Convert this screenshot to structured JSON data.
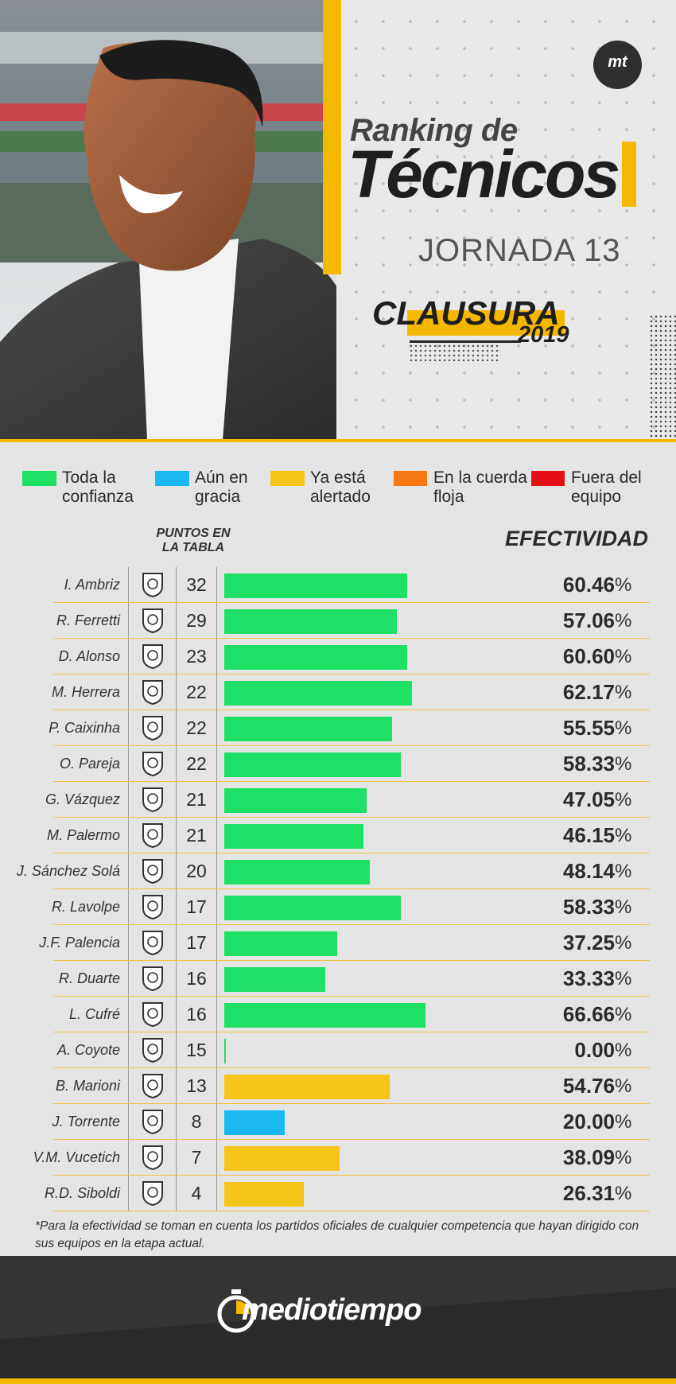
{
  "header": {
    "title_line1": "Ranking de",
    "title_line2": "Técnicos",
    "subtitle": "JORNADA 13",
    "tournament": "CLAUSURA",
    "year": "2019",
    "badge": "mt"
  },
  "legend": [
    {
      "label": "Toda la confianza",
      "color": "#1ee066"
    },
    {
      "label": "Aún en gracia",
      "color": "#1ab8ee"
    },
    {
      "label": "Ya está alertado",
      "color": "#f5c518"
    },
    {
      "label": "En la cuerda floja",
      "color": "#f77712"
    },
    {
      "label": "Fuera del equipo",
      "color": "#e30f15"
    }
  ],
  "columns": {
    "points": "PUNTOS EN LA TABLA",
    "effectiveness": "EFECTIVIDAD"
  },
  "chart_data": {
    "type": "bar",
    "categories": [
      "I. Ambriz",
      "R. Ferretti",
      "D. Alonso",
      "M. Herrera",
      "P. Caixinha",
      "O. Pareja",
      "G. Vázquez",
      "M. Palermo",
      "J. Sánchez Solá",
      "R. Lavolpe",
      "J.F. Palencia",
      "R. Duarte",
      "L. Cufré",
      "A. Coyote",
      "B. Marioni",
      "J. Torrente",
      "V.M. Vucetich",
      "R.D. Siboldi"
    ],
    "points": [
      32,
      29,
      23,
      22,
      22,
      22,
      21,
      21,
      20,
      17,
      17,
      16,
      16,
      15,
      13,
      8,
      7,
      4
    ],
    "values": [
      60.46,
      57.06,
      60.6,
      62.17,
      55.55,
      58.33,
      47.05,
      46.15,
      48.14,
      58.33,
      37.25,
      33.33,
      66.66,
      0.0,
      54.76,
      20.0,
      38.09,
      26.31
    ],
    "labels": [
      "60.46",
      "57.06",
      "60.60",
      "62.17",
      "55.55",
      "58.33",
      "47.05",
      "46.15",
      "48.14",
      "58.33",
      "37.25",
      "33.33",
      "66.66",
      "0.00",
      "54.76",
      "20.00",
      "38.09",
      "26.31"
    ],
    "status": [
      "confianza",
      "confianza",
      "confianza",
      "confianza",
      "confianza",
      "confianza",
      "confianza",
      "confianza",
      "confianza",
      "confianza",
      "confianza",
      "confianza",
      "confianza",
      "confianza",
      "alertado",
      "gracia",
      "alertado",
      "alertado"
    ],
    "status_colors": {
      "confianza": "#1ee066",
      "gracia": "#1ab8ee",
      "alertado": "#f5c518"
    },
    "unit": "%",
    "ylabel": "EFECTIVIDAD",
    "ylim": [
      0,
      100
    ]
  },
  "footnote": "*Para la efectividad se toman en cuenta los partidos oficiales de cualquier competencia que hayan dirigido con sus equipos en la etapa actual.",
  "footer": {
    "brand": "mediotiempo"
  }
}
